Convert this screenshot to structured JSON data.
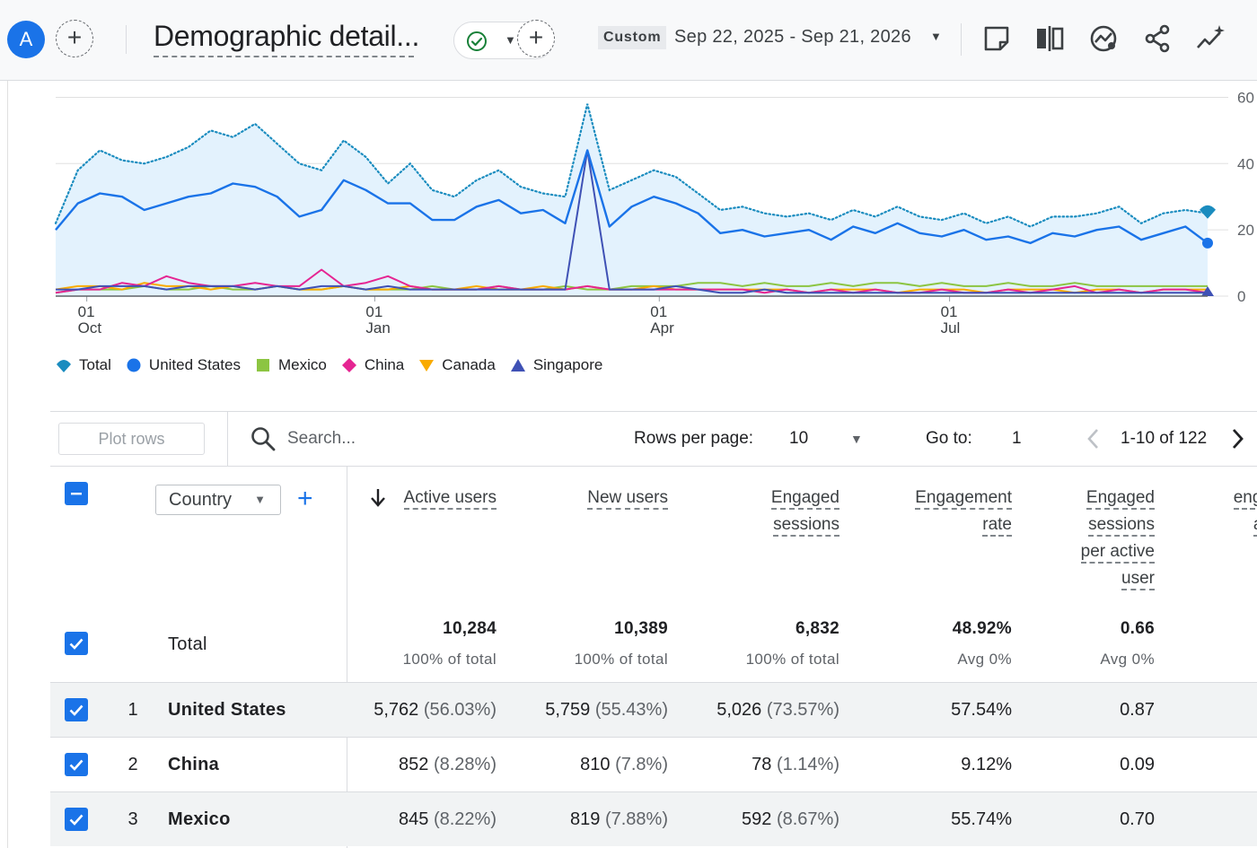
{
  "header": {
    "avatar_letter": "A",
    "title": "Demographic detail...",
    "date_preset": "Custom",
    "date_range": "Sep 22, 2025 - Sep 21, 2026"
  },
  "icons": {
    "add": "add-icon",
    "status": "check-circle-icon",
    "caret": "caret-down-icon",
    "toolbar": [
      "edit-note-icon",
      "compare-icon",
      "insights-icon",
      "share-icon",
      "sparkle-icon"
    ]
  },
  "colors": {
    "accent": "#1a73e8",
    "total": "#1a8cbf",
    "united_states": "#1a73e8",
    "mexico": "#8cc542",
    "china": "#e52592",
    "canada": "#f9ab00",
    "singapore": "#3f51b5"
  },
  "chart_data": {
    "type": "line",
    "x_tick_labels": [
      {
        "day": "01",
        "month": "Oct"
      },
      {
        "day": "01",
        "month": "Jan"
      },
      {
        "day": "01",
        "month": "Apr"
      },
      {
        "day": "01",
        "month": "Jul"
      }
    ],
    "y_tick_labels": [
      "0",
      "20",
      "40",
      "60"
    ],
    "ylim": [
      0,
      65
    ],
    "grid": true,
    "legend_position": "bottom-left",
    "legend": [
      "Total",
      "United States",
      "Mexico",
      "China",
      "Canada",
      "Singapore"
    ],
    "sample_interval_days": 7,
    "series": [
      {
        "name": "Total",
        "style": "dotted-area",
        "values": [
          22,
          38,
          44,
          41,
          40,
          42,
          45,
          50,
          48,
          52,
          46,
          40,
          38,
          47,
          42,
          34,
          40,
          32,
          30,
          35,
          38,
          33,
          31,
          30,
          58,
          32,
          35,
          38,
          36,
          31,
          26,
          27,
          25,
          24,
          25,
          23,
          26,
          24,
          27,
          24,
          23,
          25,
          22,
          24,
          21,
          24,
          24,
          25,
          27,
          22,
          25,
          26,
          25
        ]
      },
      {
        "name": "United States",
        "style": "line",
        "values": [
          20,
          28,
          31,
          30,
          26,
          28,
          30,
          31,
          34,
          33,
          30,
          24,
          26,
          35,
          32,
          28,
          28,
          23,
          23,
          27,
          29,
          25,
          26,
          22,
          44,
          21,
          27,
          30,
          28,
          25,
          19,
          20,
          18,
          19,
          20,
          17,
          21,
          19,
          22,
          19,
          18,
          20,
          17,
          18,
          16,
          19,
          18,
          20,
          21,
          17,
          19,
          21,
          16
        ]
      },
      {
        "name": "Mexico",
        "style": "line",
        "values": [
          1,
          2,
          2,
          2,
          3,
          2,
          2,
          3,
          2,
          2,
          3,
          2,
          2,
          3,
          2,
          2,
          2,
          3,
          2,
          2,
          3,
          2,
          2,
          3,
          2,
          2,
          3,
          3,
          3,
          4,
          4,
          3,
          4,
          3,
          3,
          4,
          3,
          4,
          4,
          3,
          4,
          3,
          3,
          4,
          3,
          3,
          4,
          3,
          3,
          3,
          3,
          3,
          3
        ]
      },
      {
        "name": "China",
        "style": "line",
        "values": [
          1,
          2,
          2,
          4,
          3,
          6,
          4,
          3,
          3,
          4,
          3,
          3,
          8,
          3,
          4,
          6,
          3,
          2,
          2,
          2,
          3,
          2,
          2,
          2,
          3,
          2,
          2,
          2,
          2,
          2,
          2,
          2,
          1,
          2,
          1,
          2,
          1,
          2,
          1,
          1,
          2,
          1,
          1,
          2,
          1,
          2,
          3,
          1,
          2,
          1,
          2,
          2,
          1
        ]
      },
      {
        "name": "Canada",
        "style": "line",
        "values": [
          2,
          3,
          3,
          2,
          4,
          3,
          3,
          2,
          3,
          2,
          3,
          2,
          2,
          3,
          2,
          2,
          3,
          2,
          2,
          3,
          2,
          2,
          3,
          2,
          3,
          2,
          2,
          3,
          2,
          2,
          2,
          2,
          2,
          2,
          1,
          2,
          2,
          2,
          1,
          2,
          2,
          2,
          1,
          2,
          2,
          2,
          1,
          2,
          2,
          1,
          2,
          2,
          2
        ]
      },
      {
        "name": "Singapore",
        "style": "line",
        "values": [
          2,
          2,
          3,
          3,
          3,
          2,
          3,
          3,
          3,
          2,
          3,
          2,
          3,
          3,
          2,
          3,
          2,
          2,
          2,
          2,
          2,
          2,
          2,
          2,
          44,
          2,
          2,
          2,
          3,
          2,
          1,
          1,
          2,
          1,
          1,
          1,
          1,
          1,
          1,
          1,
          1,
          1,
          1,
          1,
          1,
          1,
          1,
          1,
          1,
          1,
          1,
          1,
          1
        ]
      }
    ]
  },
  "table_toolbar": {
    "plot_rows_label": "Plot rows",
    "search_placeholder": "Search...",
    "rows_per_page_label": "Rows per page:",
    "rows_per_page_value": "10",
    "goto_label": "Go to:",
    "goto_value": "1",
    "page_info": "1-10 of 122"
  },
  "table": {
    "dimension": "Country",
    "columns": [
      {
        "lines": [
          "Active users"
        ],
        "sorted": true
      },
      {
        "lines": [
          "New users"
        ]
      },
      {
        "lines": [
          "Engaged",
          "sessions"
        ]
      },
      {
        "lines": [
          "Engagement",
          "rate"
        ]
      },
      {
        "lines": [
          "Engaged",
          "sessions",
          "per active",
          "user"
        ]
      },
      {
        "lines": [
          "enga",
          "ac"
        ]
      }
    ],
    "total_label": "Total",
    "totals": [
      {
        "value": "10,284",
        "sub": "100% of total"
      },
      {
        "value": "10,389",
        "sub": "100% of total"
      },
      {
        "value": "6,832",
        "sub": "100% of total"
      },
      {
        "value": "48.92%",
        "sub": "Avg 0%"
      },
      {
        "value": "0.66",
        "sub": "Avg 0%"
      }
    ],
    "rows": [
      {
        "rank": "1",
        "country": "United States",
        "cells": [
          {
            "v": "5,762",
            "p": "(56.03%)"
          },
          {
            "v": "5,759",
            "p": "(55.43%)"
          },
          {
            "v": "5,026",
            "p": "(73.57%)"
          },
          {
            "v": "57.54%",
            "p": ""
          },
          {
            "v": "0.87",
            "p": ""
          }
        ]
      },
      {
        "rank": "2",
        "country": "China",
        "cells": [
          {
            "v": "852",
            "p": "(8.28%)"
          },
          {
            "v": "810",
            "p": "(7.8%)"
          },
          {
            "v": "78",
            "p": "(1.14%)"
          },
          {
            "v": "9.12%",
            "p": ""
          },
          {
            "v": "0.09",
            "p": ""
          }
        ]
      },
      {
        "rank": "3",
        "country": "Mexico",
        "cells": [
          {
            "v": "845",
            "p": "(8.22%)"
          },
          {
            "v": "819",
            "p": "(7.88%)"
          },
          {
            "v": "592",
            "p": "(8.67%)"
          },
          {
            "v": "55.74%",
            "p": ""
          },
          {
            "v": "0.70",
            "p": ""
          }
        ]
      }
    ]
  }
}
